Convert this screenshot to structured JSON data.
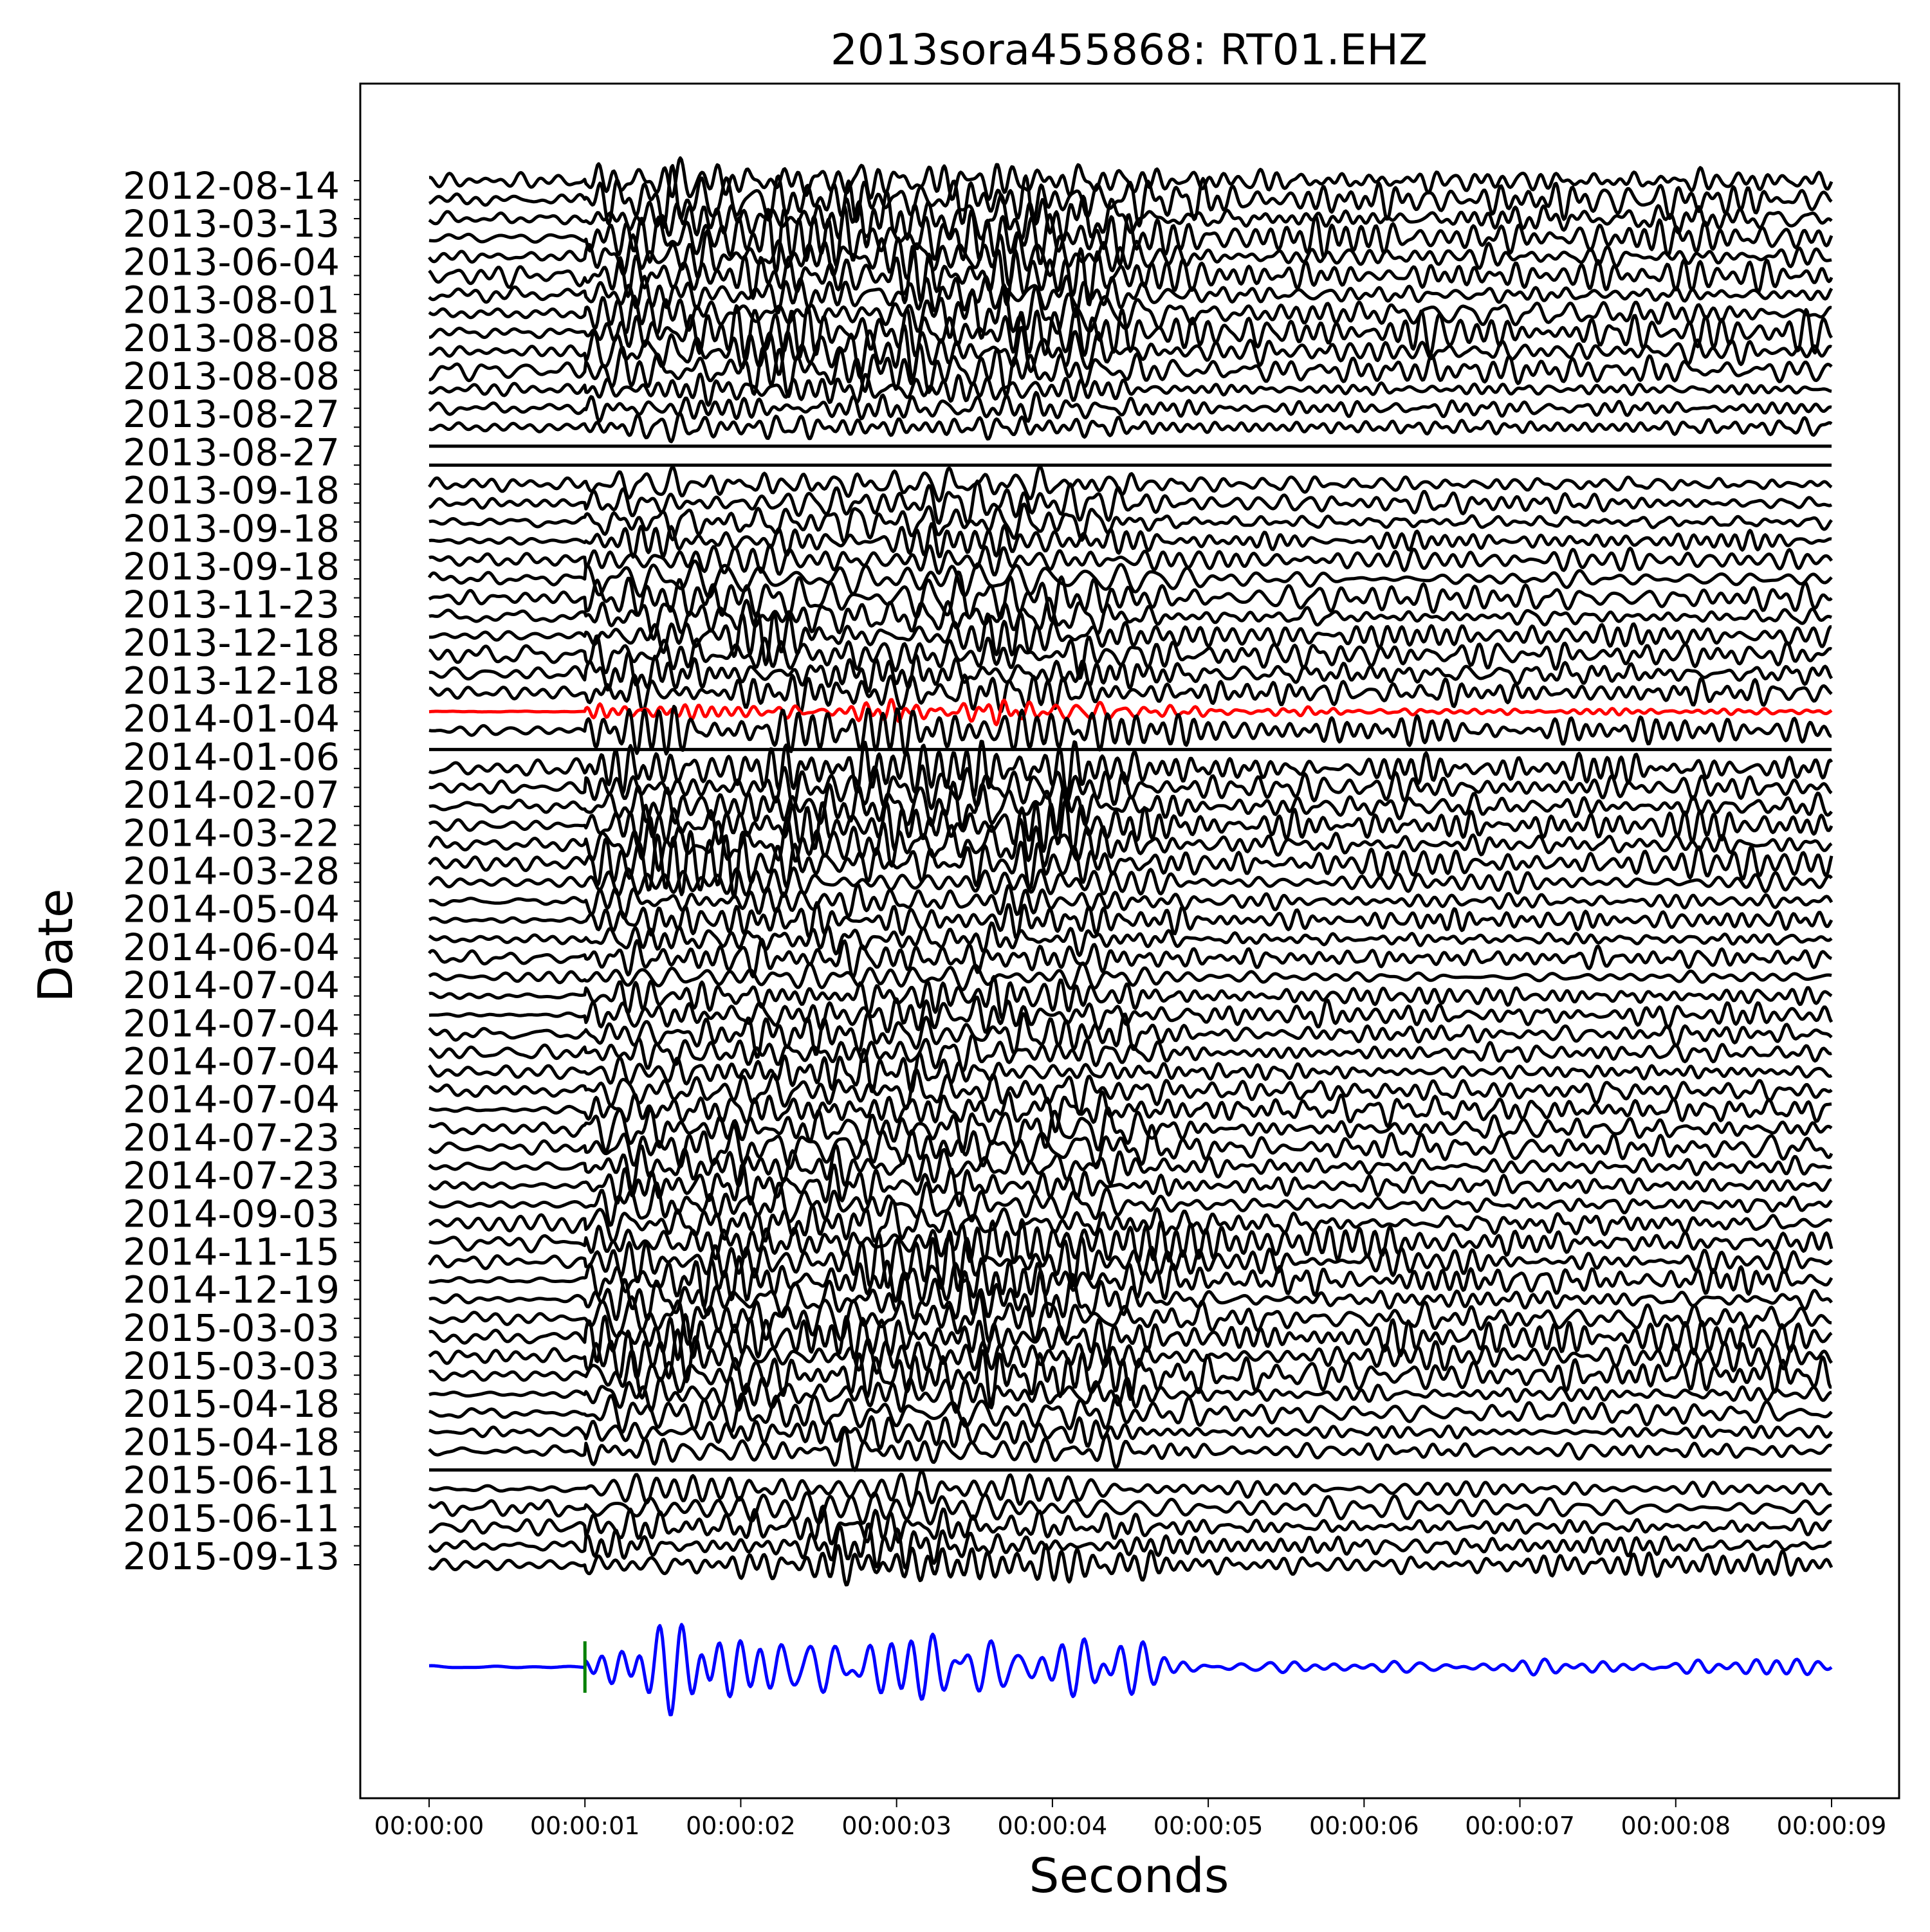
{
  "chart_data": {
    "type": "line",
    "title": "2013sora455868: RT01.EHZ",
    "xlabel": "Seconds",
    "ylabel": "Date",
    "xlim": [
      0,
      9
    ],
    "x_ticks": [
      "00:00:00",
      "00:00:01",
      "00:00:02",
      "00:00:03",
      "00:00:04",
      "00:00:05",
      "00:00:06",
      "00:00:07",
      "00:00:08",
      "00:00:09"
    ],
    "y_tick_labels": [
      "2012-08-14",
      "2013-03-13",
      "2013-06-04",
      "2013-08-01",
      "2013-08-08",
      "2013-08-08",
      "2013-08-27",
      "2013-08-27",
      "2013-09-18",
      "2013-09-18",
      "2013-09-18",
      "2013-11-23",
      "2013-12-18",
      "2013-12-18",
      "2014-01-04",
      "2014-01-06",
      "2014-02-07",
      "2014-03-22",
      "2014-03-28",
      "2014-05-04",
      "2014-06-04",
      "2014-07-04",
      "2014-07-04",
      "2014-07-04",
      "2014-07-04",
      "2014-07-23",
      "2014-07-23",
      "2014-09-03",
      "2014-11-15",
      "2014-12-19",
      "2015-03-03",
      "2015-03-03",
      "2015-04-18",
      "2015-04-18",
      "2015-06-11",
      "2015-06-11",
      "2015-09-13"
    ],
    "trace_count": 74,
    "trace_time_range": [
      0,
      9
    ],
    "onset_time": 1.0,
    "highlighted_trace_index": 28,
    "flat_trace_indices": [
      14,
      15,
      30,
      68
    ],
    "series": [
      {
        "role": "family waveforms",
        "color": "#000000"
      },
      {
        "role": "highlighted event waveform",
        "color": "#ff0000"
      },
      {
        "role": "stacked waveform",
        "color": "#0000ff"
      },
      {
        "role": "pick marker",
        "color": "#008000",
        "x": 1.0
      }
    ],
    "grid": false,
    "legend": "none"
  }
}
